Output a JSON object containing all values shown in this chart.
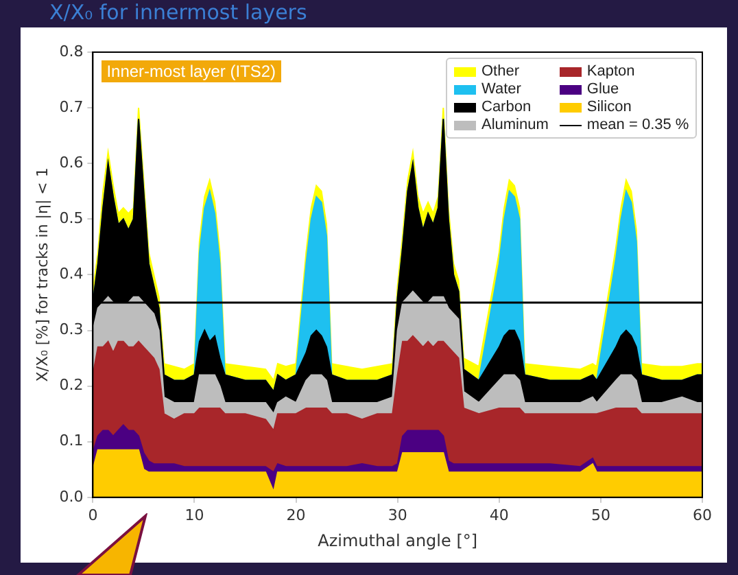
{
  "chart_data": {
    "type": "area",
    "stacked": true,
    "title": "X/X₀ for innermost layers",
    "xlabel": "Azimuthal angle [°]",
    "ylabel": "X/X₀ [%] for tracks in |η| < 1",
    "annotations": [
      "Inner-most layer (ITS2)"
    ],
    "x": [
      0,
      0.5,
      1,
      1.5,
      2,
      2.5,
      3,
      3.5,
      4,
      4.5,
      5,
      5.5,
      6,
      6.5,
      7,
      8,
      9,
      10,
      10.5,
      11,
      11.5,
      12,
      12.5,
      13,
      15,
      17,
      17.8,
      18.2,
      19,
      20,
      21,
      21.5,
      22,
      22.5,
      23,
      23.5,
      25,
      26.5,
      28,
      29.5,
      30,
      30.5,
      31,
      31.5,
      32,
      32.5,
      33,
      33.5,
      34,
      34.5,
      35,
      35.5,
      36,
      36.5,
      38,
      40,
      40.5,
      41,
      41.5,
      42,
      42.5,
      45,
      48,
      49.2,
      49.6,
      51.5,
      52,
      52.5,
      53,
      53.5,
      54,
      56,
      58,
      59.5,
      60
    ],
    "series": [
      {
        "name": "Silicon",
        "color": "#ffcc00",
        "values": [
          0.05,
          0.085,
          0.085,
          0.085,
          0.085,
          0.085,
          0.085,
          0.085,
          0.085,
          0.085,
          0.05,
          0.045,
          0.045,
          0.045,
          0.045,
          0.045,
          0.045,
          0.045,
          0.045,
          0.045,
          0.045,
          0.045,
          0.045,
          0.045,
          0.045,
          0.045,
          0.01,
          0.045,
          0.045,
          0.045,
          0.045,
          0.045,
          0.045,
          0.045,
          0.045,
          0.045,
          0.045,
          0.045,
          0.045,
          0.045,
          0.045,
          0.08,
          0.08,
          0.08,
          0.08,
          0.08,
          0.08,
          0.08,
          0.08,
          0.08,
          0.045,
          0.045,
          0.045,
          0.045,
          0.045,
          0.045,
          0.045,
          0.045,
          0.045,
          0.045,
          0.045,
          0.045,
          0.045,
          0.06,
          0.045,
          0.045,
          0.045,
          0.045,
          0.045,
          0.045,
          0.045,
          0.045,
          0.045,
          0.045,
          0.045
        ]
      },
      {
        "name": "Glue",
        "color": "#4b0082",
        "values": [
          0.03,
          0.025,
          0.035,
          0.035,
          0.025,
          0.035,
          0.045,
          0.035,
          0.035,
          0.025,
          0.03,
          0.02,
          0.015,
          0.015,
          0.015,
          0.015,
          0.01,
          0.01,
          0.01,
          0.01,
          0.01,
          0.01,
          0.01,
          0.01,
          0.01,
          0.01,
          0.035,
          0.015,
          0.01,
          0.01,
          0.01,
          0.01,
          0.01,
          0.01,
          0.01,
          0.01,
          0.01,
          0.015,
          0.01,
          0.01,
          0.015,
          0.03,
          0.04,
          0.04,
          0.04,
          0.04,
          0.04,
          0.04,
          0.04,
          0.03,
          0.02,
          0.015,
          0.015,
          0.015,
          0.015,
          0.015,
          0.015,
          0.015,
          0.015,
          0.015,
          0.015,
          0.015,
          0.01,
          0.01,
          0.01,
          0.01,
          0.01,
          0.01,
          0.01,
          0.01,
          0.01,
          0.01,
          0.01,
          0.01,
          0.01
        ]
      },
      {
        "name": "Kapton",
        "color": "#a8262a",
        "values": [
          0.14,
          0.16,
          0.15,
          0.16,
          0.15,
          0.16,
          0.15,
          0.15,
          0.15,
          0.17,
          0.19,
          0.195,
          0.19,
          0.17,
          0.09,
          0.08,
          0.095,
          0.095,
          0.105,
          0.105,
          0.105,
          0.105,
          0.105,
          0.095,
          0.095,
          0.085,
          0.075,
          0.09,
          0.095,
          0.095,
          0.105,
          0.105,
          0.105,
          0.105,
          0.105,
          0.095,
          0.095,
          0.08,
          0.095,
          0.095,
          0.16,
          0.17,
          0.16,
          0.17,
          0.16,
          0.15,
          0.16,
          0.15,
          0.16,
          0.17,
          0.205,
          0.2,
          0.19,
          0.1,
          0.09,
          0.1,
          0.1,
          0.1,
          0.1,
          0.1,
          0.09,
          0.09,
          0.095,
          0.08,
          0.095,
          0.105,
          0.105,
          0.105,
          0.105,
          0.105,
          0.095,
          0.095,
          0.095,
          0.095,
          0.095
        ]
      },
      {
        "name": "Aluminum",
        "color": "#bdbdbd",
        "values": [
          0.08,
          0.07,
          0.08,
          0.08,
          0.09,
          0.07,
          0.07,
          0.08,
          0.09,
          0.08,
          0.08,
          0.08,
          0.08,
          0.07,
          0.03,
          0.03,
          0.02,
          0.02,
          0.06,
          0.06,
          0.06,
          0.06,
          0.04,
          0.02,
          0.02,
          0.03,
          0.03,
          0.02,
          0.03,
          0.02,
          0.05,
          0.06,
          0.06,
          0.06,
          0.05,
          0.02,
          0.02,
          0.03,
          0.02,
          0.03,
          0.08,
          0.07,
          0.08,
          0.08,
          0.08,
          0.08,
          0.07,
          0.09,
          0.08,
          0.08,
          0.07,
          0.07,
          0.07,
          0.03,
          0.02,
          0.05,
          0.06,
          0.06,
          0.06,
          0.05,
          0.02,
          0.02,
          0.02,
          0.03,
          0.02,
          0.05,
          0.06,
          0.06,
          0.06,
          0.05,
          0.02,
          0.02,
          0.03,
          0.02,
          0.02
        ]
      },
      {
        "name": "Carbon",
        "color": "#000000",
        "values": [
          0.05,
          0.08,
          0.17,
          0.24,
          0.19,
          0.14,
          0.15,
          0.13,
          0.14,
          0.32,
          0.2,
          0.08,
          0.05,
          0.04,
          0.04,
          0.04,
          0.04,
          0.05,
          0.06,
          0.08,
          0.06,
          0.07,
          0.05,
          0.05,
          0.04,
          0.04,
          0.04,
          0.05,
          0.03,
          0.05,
          0.05,
          0.07,
          0.08,
          0.07,
          0.06,
          0.05,
          0.04,
          0.04,
          0.04,
          0.04,
          0.06,
          0.1,
          0.19,
          0.23,
          0.16,
          0.13,
          0.16,
          0.13,
          0.16,
          0.32,
          0.16,
          0.07,
          0.05,
          0.04,
          0.04,
          0.06,
          0.07,
          0.08,
          0.08,
          0.07,
          0.05,
          0.04,
          0.04,
          0.04,
          0.04,
          0.06,
          0.07,
          0.08,
          0.07,
          0.06,
          0.05,
          0.04,
          0.03,
          0.05,
          0.05
        ]
      },
      {
        "name": "Water",
        "color": "#1ec0f0",
        "values": [
          0,
          0,
          0,
          0,
          0,
          0,
          0,
          0,
          0,
          0,
          0,
          0,
          0,
          0,
          0,
          0,
          0,
          0,
          0.16,
          0.22,
          0.27,
          0.22,
          0.17,
          0,
          0,
          0,
          0,
          0,
          0,
          0,
          0.16,
          0.21,
          0.24,
          0.24,
          0.2,
          0,
          0,
          0,
          0,
          0,
          0,
          0,
          0,
          0,
          0,
          0,
          0,
          0,
          0,
          0,
          0,
          0,
          0,
          0,
          0,
          0.15,
          0.21,
          0.25,
          0.24,
          0.22,
          0,
          0,
          0,
          0,
          0,
          0.16,
          0.21,
          0.25,
          0.24,
          0.19,
          0,
          0,
          0,
          0,
          0
        ]
      },
      {
        "name": "Other",
        "color": "#ffff00",
        "values": [
          0.02,
          0.02,
          0.03,
          0.02,
          0.02,
          0.02,
          0.02,
          0.03,
          0.02,
          0.02,
          0.02,
          0.02,
          0.02,
          0.02,
          0.02,
          0.025,
          0.02,
          0.02,
          0.02,
          0.02,
          0.02,
          0.02,
          0.02,
          0.02,
          0.025,
          0.02,
          0.02,
          0.02,
          0.025,
          0.02,
          0.02,
          0.02,
          0.02,
          0.02,
          0.02,
          0.02,
          0.025,
          0.02,
          0.025,
          0.02,
          0.02,
          0.02,
          0.02,
          0.02,
          0.02,
          0.03,
          0.02,
          0.02,
          0.02,
          0.02,
          0.02,
          0.02,
          0.02,
          0.02,
          0.025,
          0.02,
          0.02,
          0.02,
          0.02,
          0.02,
          0.02,
          0.025,
          0.02,
          0.02,
          0.025,
          0.02,
          0.02,
          0.02,
          0.02,
          0.02,
          0.02,
          0.025,
          0.025,
          0.02,
          0.02
        ]
      }
    ],
    "ref_lines": [
      {
        "axis": "y",
        "value": 0.35,
        "label": "mean = 0.35 %",
        "color": "#000000"
      }
    ],
    "xlim": [
      0,
      60
    ],
    "xticks": [
      0,
      10,
      20,
      30,
      40,
      50,
      60
    ],
    "ylim": [
      0,
      0.8
    ],
    "yticks": [
      {
        "value": 0,
        "label": "0.0"
      },
      {
        "value": 0.1,
        "label": "0.1"
      },
      {
        "value": 0.2,
        "label": "0.2"
      },
      {
        "value": 0.3,
        "label": "0.3"
      },
      {
        "value": 0.4,
        "label": "0.4"
      },
      {
        "value": 0.5,
        "label": "0.5"
      },
      {
        "value": 0.6,
        "label": "0.6"
      },
      {
        "value": 0.7,
        "label": "0.7"
      },
      {
        "value": 0.8,
        "label": "0.8"
      }
    ],
    "grid": false,
    "legend": "top right"
  }
}
